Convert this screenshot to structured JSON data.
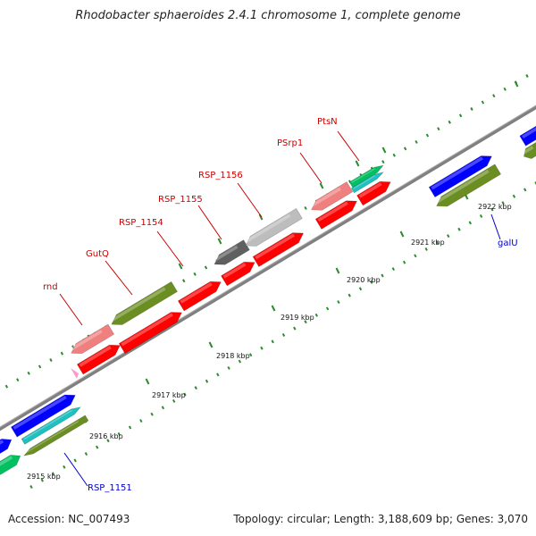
{
  "title": "Rhodobacter sphaeroides 2.4.1 chromosome 1, complete genome",
  "footer": {
    "accession": "Accession: NC_007493",
    "stats": "Topology: circular; Length: 3,188,609 bp; Genes: 3,070"
  },
  "colors": {
    "red": "#ff0000",
    "pink": "#f08080",
    "olive": "#6b8e23",
    "blue": "#0000ff",
    "cyan": "#20c0c0",
    "green": "#00c060",
    "gray": "#bdbdbd",
    "darkgray": "#606060",
    "backbone": "#808080",
    "tick": "#2e8b2e",
    "label_red": "#cc0000",
    "label_blue": "#0000cc"
  },
  "kbp_labels": [
    "2915 kbp",
    "2916 kbp",
    "2917 kbp",
    "2918 kbp",
    "2919 kbp",
    "2920 kbp",
    "2921 kbp",
    "2922 kbp"
  ],
  "gene_labels": [
    {
      "text": "rnd",
      "color": "red"
    },
    {
      "text": "GutQ",
      "color": "red"
    },
    {
      "text": "RSP_1154",
      "color": "red"
    },
    {
      "text": "RSP_1155",
      "color": "red"
    },
    {
      "text": "RSP_1156",
      "color": "red"
    },
    {
      "text": "PSrp1",
      "color": "red"
    },
    {
      "text": "PtsN",
      "color": "red"
    },
    {
      "text": "galU",
      "color": "blue"
    },
    {
      "text": "RSP_1151",
      "color": "blue"
    }
  ]
}
